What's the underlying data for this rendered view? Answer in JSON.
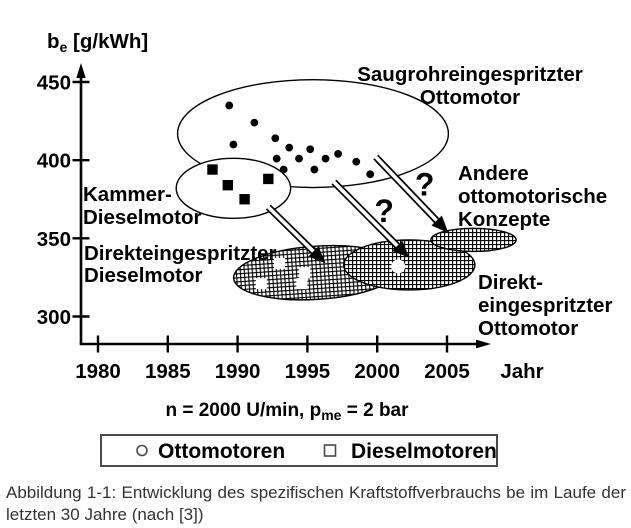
{
  "chart": {
    "y_axis_label": {
      "base": "b",
      "sub": "e",
      "rest": " [g/kWh]"
    },
    "x_axis_label": "Jahr",
    "condition_line": {
      "pre": "n = 2000 U/min, p",
      "sub": "me",
      "post": " = 2 bar"
    },
    "y_ticks": [
      "450",
      "400",
      "350",
      "300"
    ],
    "x_ticks": [
      "1980",
      "1985",
      "1990",
      "1995",
      "2000",
      "2005"
    ]
  },
  "chart_data": {
    "type": "scatter",
    "title": "",
    "xlabel": "Jahr",
    "ylabel": "be [g/kWh]",
    "xlim": [
      1977,
      2008
    ],
    "ylim": [
      290,
      460
    ],
    "note": "n = 2000 U/min, pme = 2 bar",
    "series": [
      {
        "name": "Ottomotoren",
        "marker": "filled-circle",
        "points": [
          [
            1989.4,
            435
          ],
          [
            1991.2,
            424
          ],
          [
            1989.7,
            410
          ],
          [
            1992.7,
            414
          ],
          [
            1993.7,
            408
          ],
          [
            1992.8,
            401
          ],
          [
            1993.3,
            394
          ],
          [
            1994.4,
            401
          ],
          [
            1995.2,
            407
          ],
          [
            1995.5,
            394
          ],
          [
            1996.3,
            401
          ],
          [
            1997.2,
            404
          ],
          [
            1998.5,
            399
          ],
          [
            1999.5,
            391
          ]
        ]
      },
      {
        "name": "Dieselmotoren",
        "marker": "filled-square",
        "points": [
          [
            1988.2,
            394
          ],
          [
            1989.3,
            384
          ],
          [
            1992.2,
            388
          ],
          [
            1990.5,
            375
          ]
        ]
      },
      {
        "name": "Dieselmotoren (Direkteinspritzung)",
        "marker": "open-square",
        "points": [
          [
            1993.0,
            334
          ],
          [
            1994.8,
            328
          ],
          [
            1991.7,
            321
          ],
          [
            1994.6,
            321
          ]
        ]
      },
      {
        "name": "Ottomotoren (Direkteinspritzung)",
        "marker": "open-circle",
        "points": [
          [
            2001.5,
            332
          ]
        ]
      }
    ],
    "groups": [
      {
        "id": "saugrohr",
        "label": "Saugrohreingespritzter Ottomotor",
        "center": [
          1995.4,
          417
        ],
        "rx_years": 9.7,
        "ry_units": 34.5,
        "fill": "white",
        "rotation": 0
      },
      {
        "id": "kammer",
        "label": "Kammer-Dieselmotor",
        "center": [
          1989.7,
          382
        ],
        "rx_years": 4.1,
        "ry_units": 19.2,
        "fill": "white",
        "rotation": 0
      },
      {
        "id": "diesel_di",
        "label": "Direkteingespritzter Dieselmotor",
        "center": [
          1995.7,
          328
        ],
        "rx_years": 6.0,
        "ry_units": 17.0,
        "fill": "hatch",
        "rotation": -3.8
      },
      {
        "id": "otto_di",
        "label": "Direkt-eingespritzter Ottomotor",
        "center": [
          2002.3,
          333
        ],
        "rx_years": 4.7,
        "ry_units": 16.0,
        "fill": "hatch",
        "rotation": 0
      },
      {
        "id": "andere",
        "label": "Andere ottomotorische Konzepte",
        "center": [
          2006.9,
          349
        ],
        "rx_years": 3.05,
        "ry_units": 7.4,
        "fill": "hatch",
        "rotation": 0
      }
    ],
    "arrows": [
      {
        "from": [
          1992.2,
          370.0
        ],
        "to": [
          1996.3,
          334.0
        ]
      },
      {
        "from": [
          1996.9,
          386.0
        ],
        "to": [
          2002.3,
          337.5
        ]
      },
      {
        "from": [
          1999.9,
          402.0
        ],
        "to": [
          2005.1,
          353.5
        ]
      }
    ],
    "question_marks": [
      {
        "text": "?",
        "at": [
          2000.5,
          367.5
        ]
      },
      {
        "text": "?",
        "at": [
          2003.4,
          384.5
        ]
      }
    ]
  },
  "annotations": {
    "saugrohr": {
      "line1": "Saugrohreingespritzter",
      "line2": "Ottomotor"
    },
    "kammer": {
      "line1": "Kammer-",
      "line2": "Dieselmotor"
    },
    "diesel_di": {
      "line1": "Direkteingespritzter",
      "line2": "Dieselmotor"
    },
    "andere": {
      "line1": "Andere",
      "line2": "ottomotorische",
      "line3": "Konzepte"
    },
    "otto_di": {
      "line1": "Direkt-",
      "line2": "eingespritzter",
      "line3": "Ottomotor"
    }
  },
  "legend": {
    "otto_label": "Ottomotoren",
    "diesel_label": "Dieselmotoren"
  },
  "caption": {
    "line1": "Abbildung 1-1: Entwicklung des spezifischen Kraftstoffverbrauchs be im Laufe der",
    "line2": "letzten 30 Jahre (nach [3])"
  }
}
